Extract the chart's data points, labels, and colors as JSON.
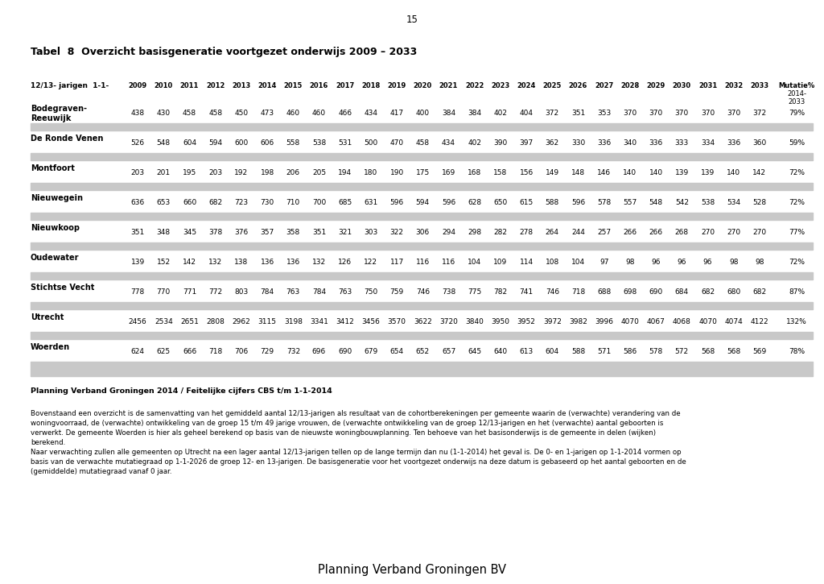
{
  "page_number": "15",
  "title": "Tabel  8  Overzicht basisgeneratie voortgezet onderwijs 2009 – 2033",
  "header_label": "12/13- jarigen  1-1-",
  "year_cols": [
    "2009",
    "2010",
    "2011",
    "2012",
    "2013",
    "2014",
    "2015",
    "2016",
    "2017",
    "2018",
    "2019",
    "2020",
    "2021",
    "2022",
    "2023",
    "2024",
    "2025",
    "2026",
    "2027",
    "2028",
    "2029",
    "2030",
    "2031",
    "2032",
    "2033"
  ],
  "mutatie_header": "Mutatie%",
  "mutatie_subheader": "2014-\n2033",
  "rows": [
    {
      "name": "Bodegraven-\nReeuwijk",
      "values": [
        438,
        430,
        458,
        458,
        450,
        473,
        460,
        460,
        466,
        434,
        417,
        400,
        384,
        384,
        402,
        404,
        372,
        351,
        353,
        370,
        370,
        370,
        370,
        370,
        372
      ],
      "mutatie": "79%"
    },
    {
      "name": "De Ronde Venen",
      "values": [
        526,
        548,
        604,
        594,
        600,
        606,
        558,
        538,
        531,
        500,
        470,
        458,
        434,
        402,
        390,
        397,
        362,
        330,
        336,
        340,
        336,
        333,
        334,
        336,
        360
      ],
      "mutatie": "59%"
    },
    {
      "name": "Montfoort",
      "values": [
        203,
        201,
        195,
        203,
        192,
        198,
        206,
        205,
        194,
        180,
        190,
        175,
        169,
        168,
        158,
        156,
        149,
        148,
        146,
        140,
        140,
        139,
        139,
        140,
        142
      ],
      "mutatie": "72%"
    },
    {
      "name": "Nieuwegein",
      "values": [
        636,
        653,
        660,
        682,
        723,
        730,
        710,
        700,
        685,
        631,
        596,
        594,
        596,
        628,
        650,
        615,
        588,
        596,
        578,
        557,
        548,
        542,
        538,
        534,
        528
      ],
      "mutatie": "72%"
    },
    {
      "name": "Nieuwkoop",
      "values": [
        351,
        348,
        345,
        378,
        376,
        357,
        358,
        351,
        321,
        303,
        322,
        306,
        294,
        298,
        282,
        278,
        264,
        244,
        257,
        266,
        266,
        268,
        270,
        270,
        270
      ],
      "mutatie": "77%"
    },
    {
      "name": "Oudewater",
      "values": [
        139,
        152,
        142,
        132,
        138,
        136,
        136,
        132,
        126,
        122,
        117,
        116,
        116,
        104,
        109,
        114,
        108,
        104,
        97,
        98,
        96,
        96,
        96,
        98,
        98
      ],
      "mutatie": "72%"
    },
    {
      "name": "Stichtse Vecht",
      "values": [
        778,
        770,
        771,
        772,
        803,
        784,
        763,
        784,
        763,
        750,
        759,
        746,
        738,
        775,
        782,
        741,
        746,
        718,
        688,
        698,
        690,
        684,
        682,
        680,
        682
      ],
      "mutatie": "87%"
    },
    {
      "name": "Utrecht",
      "values": [
        2456,
        2534,
        2651,
        2808,
        2962,
        3115,
        3198,
        3341,
        3412,
        3456,
        3570,
        3622,
        3720,
        3840,
        3950,
        3952,
        3972,
        3982,
        3996,
        4070,
        4067,
        4068,
        4070,
        4074,
        4122
      ],
      "mutatie": "132%"
    },
    {
      "name": "Woerden",
      "values": [
        624,
        625,
        666,
        718,
        706,
        729,
        732,
        696,
        690,
        679,
        654,
        652,
        657,
        645,
        640,
        613,
        604,
        588,
        571,
        586,
        578,
        572,
        568,
        568,
        569
      ],
      "mutatie": "78%"
    }
  ],
  "source_line": "Planning Verband Groningen 2014 / Feitelijke cijfers CBS t/m 1-1-2014",
  "body_text_lines": [
    "Bovenstaand een overzicht is de samenvatting van het gemiddeld aantal 12/13-jarigen als resultaat van de cohortberekeningen per gemeente waarin de (verwachte) verandering van de",
    "woningvoorraad, de (verwachte) ontwikkeling van de groep 15 t/m 49 jarige vrouwen, de (verwachte ontwikkeling van de groep 12/13-jarigen en het (verwachte) aantal geboorten is",
    "verwerkt. De gemeente Woerden is hier als geheel berekend op basis van de nieuwste woningbouwplanning. Ten behoeve van het basisonderwijs is de gemeente in delen (wijken)",
    "berekend.",
    "Naar verwachting zullen alle gemeenten op Utrecht na een lager aantal 12/13-jarigen tellen op de lange termijn dan nu (1-1-2014) het geval is. De 0- en 1-jarigen op 1-1-2014 vormen op",
    "basis van de verwachte mutatiegraad op 1-1-2026 de groep 12- en 13-jarigen. De basisgeneratie voor het voortgezet onderwijs na deze datum is gebaseerd op het aantal geboorten en de",
    "(gemiddelde) mutatiegraad vanaf 0 jaar."
  ],
  "footer": "Planning Verband Groningen BV",
  "bg_color": "#ffffff",
  "shade_color": "#c8c8c8"
}
